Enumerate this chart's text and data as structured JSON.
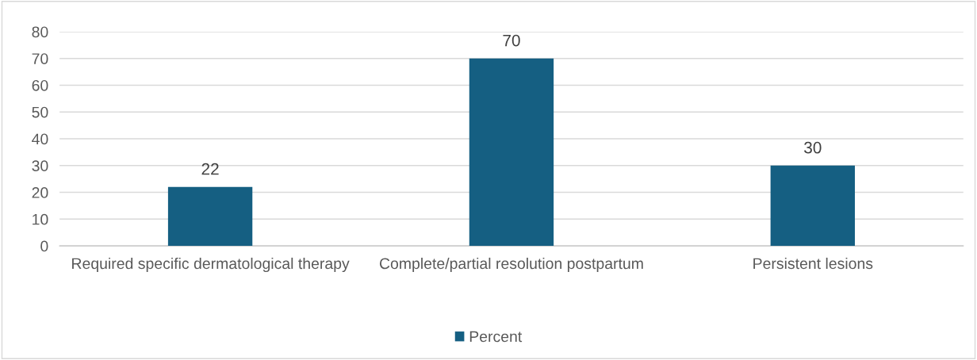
{
  "chart_data": {
    "type": "bar",
    "categories": [
      "Required specific dermatological therapy",
      "Complete/partial resolution postpartum",
      "Persistent lesions"
    ],
    "series": [
      {
        "name": "Percent",
        "color": "#155f82",
        "values": [
          22,
          70,
          30
        ]
      }
    ],
    "ylim": [
      0,
      80
    ],
    "yticks": [
      0,
      10,
      20,
      30,
      40,
      50,
      60,
      70,
      80
    ],
    "grid": "y",
    "legend": "bottom",
    "data_labels": true
  }
}
